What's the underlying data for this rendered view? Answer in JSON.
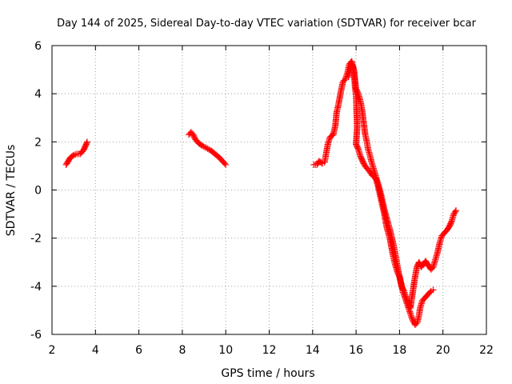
{
  "chart_data": {
    "type": "scatter",
    "title": "Day 144 of 2025, Sidereal Day-to-day VTEC variation (SDTVAR) for receiver bcar",
    "xlabel": "GPS time / hours",
    "ylabel": "SDTVAR / TECUs",
    "xlim": [
      2,
      22
    ],
    "ylim": [
      -6,
      6
    ],
    "xticks": [
      2,
      4,
      6,
      8,
      10,
      12,
      14,
      16,
      18,
      20,
      22
    ],
    "yticks": [
      -6,
      -4,
      -2,
      0,
      2,
      4,
      6
    ],
    "grid": true,
    "marker": "+",
    "color": "#ff0000",
    "series": [
      {
        "name": "segment-1",
        "points": [
          [
            2.65,
            1.05
          ],
          [
            2.75,
            1.2
          ],
          [
            2.85,
            1.35
          ],
          [
            3.0,
            1.45
          ],
          [
            3.15,
            1.5
          ],
          [
            3.3,
            1.5
          ],
          [
            3.45,
            1.65
          ],
          [
            3.55,
            1.85
          ],
          [
            3.62,
            2.0
          ]
        ]
      },
      {
        "name": "segment-2",
        "points": [
          [
            8.3,
            2.3
          ],
          [
            8.4,
            2.4
          ],
          [
            8.5,
            2.3
          ],
          [
            8.6,
            2.1
          ],
          [
            8.75,
            1.95
          ],
          [
            8.9,
            1.85
          ],
          [
            9.1,
            1.75
          ],
          [
            9.3,
            1.65
          ],
          [
            9.5,
            1.5
          ],
          [
            9.7,
            1.35
          ],
          [
            9.85,
            1.2
          ],
          [
            10.0,
            1.05
          ]
        ]
      },
      {
        "name": "segment-3",
        "points": [
          [
            14.05,
            1.05
          ],
          [
            14.2,
            1.05
          ],
          [
            14.3,
            1.2
          ],
          [
            14.45,
            1.1
          ],
          [
            14.55,
            1.15
          ],
          [
            14.6,
            1.4
          ],
          [
            14.7,
            1.9
          ],
          [
            14.8,
            2.2
          ],
          [
            14.95,
            2.3
          ],
          [
            15.05,
            2.7
          ],
          [
            15.1,
            3.2
          ],
          [
            15.2,
            3.6
          ],
          [
            15.3,
            4.1
          ],
          [
            15.4,
            4.5
          ],
          [
            15.5,
            4.6
          ],
          [
            15.6,
            4.85
          ],
          [
            15.68,
            5.2
          ],
          [
            15.75,
            5.3
          ],
          [
            15.82,
            5.2
          ],
          [
            15.9,
            5.0
          ],
          [
            15.95,
            4.6
          ],
          [
            16.0,
            4.2
          ],
          [
            16.1,
            4.0
          ],
          [
            16.2,
            3.7
          ],
          [
            16.28,
            3.3
          ],
          [
            16.35,
            2.8
          ],
          [
            16.42,
            2.3
          ],
          [
            16.5,
            2.0
          ],
          [
            16.55,
            1.7
          ],
          [
            16.62,
            1.5
          ],
          [
            16.7,
            1.2
          ],
          [
            16.8,
            0.9
          ],
          [
            16.9,
            0.6
          ],
          [
            17.0,
            0.3
          ],
          [
            17.1,
            0.0
          ],
          [
            17.2,
            -0.4
          ],
          [
            17.3,
            -0.8
          ],
          [
            17.45,
            -1.3
          ],
          [
            17.6,
            -1.8
          ],
          [
            17.75,
            -2.4
          ],
          [
            17.85,
            -2.9
          ],
          [
            17.95,
            -3.4
          ],
          [
            18.05,
            -3.8
          ],
          [
            18.15,
            -4.2
          ],
          [
            18.3,
            -4.6
          ],
          [
            18.45,
            -5.0
          ],
          [
            18.6,
            -5.4
          ],
          [
            18.72,
            -5.6
          ],
          [
            18.82,
            -5.5
          ],
          [
            18.9,
            -5.2
          ],
          [
            18.95,
            -4.9
          ],
          [
            19.05,
            -4.6
          ],
          [
            19.15,
            -4.5
          ],
          [
            19.3,
            -4.35
          ],
          [
            19.45,
            -4.2
          ],
          [
            19.55,
            -4.15
          ]
        ]
      },
      {
        "name": "segment-4",
        "points": [
          [
            15.65,
            4.7
          ],
          [
            15.72,
            5.0
          ],
          [
            15.8,
            5.35
          ],
          [
            15.87,
            5.1
          ],
          [
            15.92,
            4.7
          ],
          [
            15.95,
            4.3
          ],
          [
            16.0,
            3.9
          ],
          [
            16.05,
            2.6
          ],
          [
            16.0,
            1.9
          ],
          [
            16.1,
            1.7
          ],
          [
            16.2,
            1.4
          ],
          [
            16.35,
            1.1
          ],
          [
            16.45,
            0.95
          ],
          [
            16.6,
            0.8
          ],
          [
            16.75,
            0.6
          ],
          [
            16.9,
            0.5
          ],
          [
            17.0,
            0.2
          ],
          [
            17.1,
            -0.2
          ],
          [
            17.2,
            -0.6
          ],
          [
            17.3,
            -1.0
          ],
          [
            17.4,
            -1.5
          ],
          [
            17.55,
            -2.0
          ],
          [
            17.7,
            -2.7
          ],
          [
            17.8,
            -3.1
          ],
          [
            17.9,
            -3.4
          ],
          [
            18.0,
            -3.6
          ],
          [
            18.1,
            -4.0
          ],
          [
            18.2,
            -4.2
          ],
          [
            18.35,
            -4.6
          ],
          [
            18.5,
            -4.9
          ],
          [
            18.6,
            -4.3
          ],
          [
            18.7,
            -3.7
          ],
          [
            18.8,
            -3.2
          ],
          [
            18.9,
            -3.0
          ],
          [
            19.0,
            -3.2
          ],
          [
            19.1,
            -3.1
          ],
          [
            19.2,
            -2.95
          ],
          [
            19.3,
            -3.1
          ],
          [
            19.45,
            -3.3
          ],
          [
            19.55,
            -3.2
          ],
          [
            19.65,
            -2.9
          ],
          [
            19.75,
            -2.6
          ],
          [
            19.85,
            -2.2
          ],
          [
            19.95,
            -1.9
          ],
          [
            20.1,
            -1.75
          ],
          [
            20.2,
            -1.65
          ],
          [
            20.3,
            -1.5
          ],
          [
            20.4,
            -1.3
          ],
          [
            20.5,
            -1.0
          ],
          [
            20.6,
            -0.85
          ]
        ]
      }
    ]
  }
}
